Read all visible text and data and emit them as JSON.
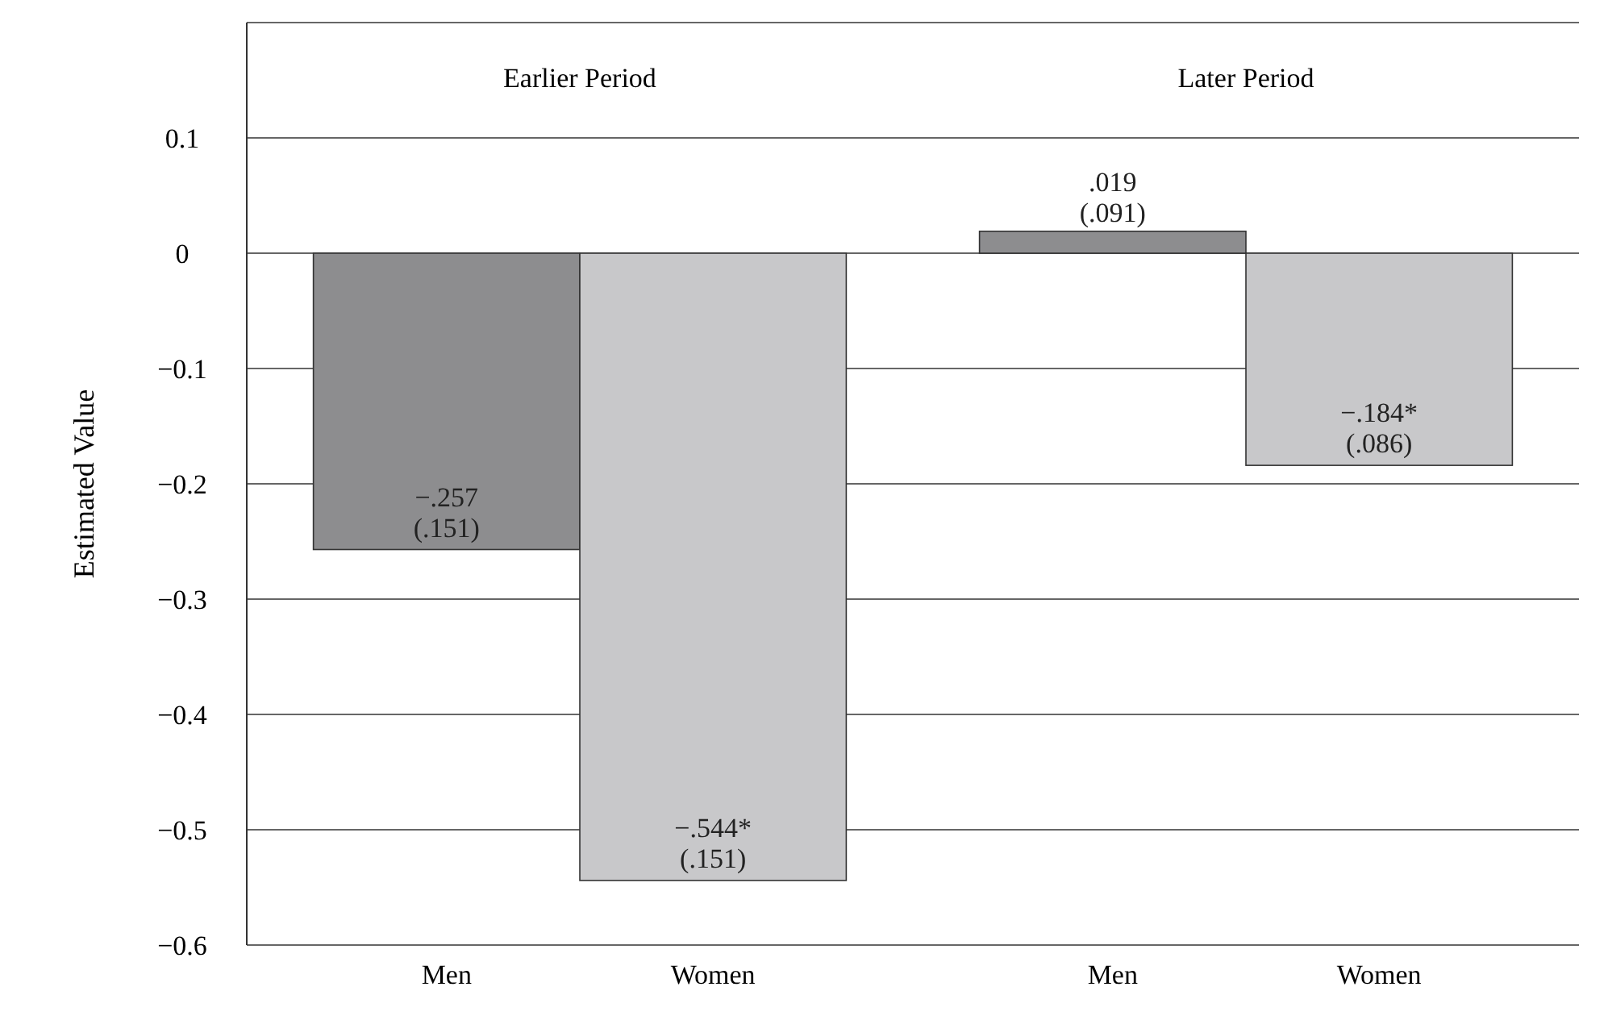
{
  "chart_data": {
    "type": "bar",
    "ylabel": "Estimated Value",
    "categories": [
      "Men",
      "Women",
      "Men",
      "Women"
    ],
    "values": [
      -0.257,
      -0.544,
      0.019,
      -0.184
    ],
    "colors": [
      "#8d8d8f",
      "#c8c8ca",
      "#8d8d8f",
      "#c8c8ca"
    ],
    "value_labels": [
      "−.257\n(.151)",
      "−.544*\n(.151)",
      ".019\n(.091)",
      "−.184*\n(.086)"
    ],
    "annotations": [
      "Earlier Period",
      "Later Period"
    ],
    "ylim": [
      -0.6,
      0.2
    ],
    "yticks": [
      {
        "value": -0.6,
        "label": "−0.6"
      },
      {
        "value": -0.5,
        "label": "−0.5"
      },
      {
        "value": -0.4,
        "label": "−0.4"
      },
      {
        "value": -0.3,
        "label": "−0.3"
      },
      {
        "value": -0.2,
        "label": "−0.2"
      },
      {
        "value": -0.1,
        "label": "−0.1"
      },
      0,
      0.1
    ],
    "grid": "y"
  }
}
